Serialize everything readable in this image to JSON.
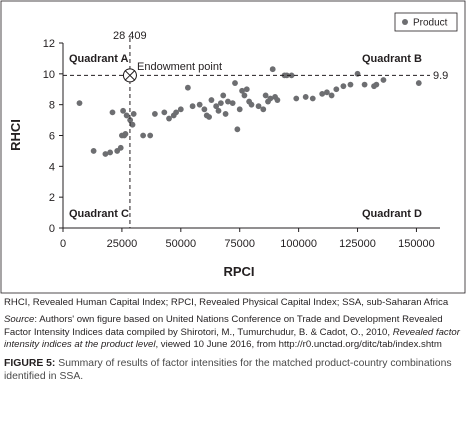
{
  "chart_data": {
    "type": "scatter",
    "xlabel": "RPCI",
    "ylabel": "RHCI",
    "xlim": [
      0,
      160000
    ],
    "ylim": [
      0,
      12
    ],
    "xticks": [
      "0",
      "25000",
      "50000",
      "75000",
      "100000",
      "125000",
      "150000"
    ],
    "xtick_values": [
      0,
      25000,
      50000,
      75000,
      100000,
      125000,
      150000
    ],
    "yticks": [
      "0",
      "2",
      "4",
      "6",
      "8",
      "10",
      "12"
    ],
    "ytick_values": [
      0,
      2,
      4,
      6,
      8,
      10,
      12
    ],
    "grid": false,
    "legend_position": "top-right",
    "legend": [
      "Product"
    ],
    "point_color": "#6d6e71",
    "series": [
      {
        "name": "Product",
        "points": [
          [
            7000,
            8.1
          ],
          [
            13000,
            5.0
          ],
          [
            18000,
            4.8
          ],
          [
            20000,
            4.9
          ],
          [
            21000,
            7.5
          ],
          [
            23000,
            5.0
          ],
          [
            24500,
            5.2
          ],
          [
            25000,
            6.0
          ],
          [
            25500,
            7.6
          ],
          [
            26000,
            6.0
          ],
          [
            26500,
            6.1
          ],
          [
            27000,
            7.3
          ],
          [
            28500,
            7.0
          ],
          [
            29500,
            6.7
          ],
          [
            30000,
            7.4
          ],
          [
            34000,
            6.0
          ],
          [
            37000,
            6.0
          ],
          [
            39000,
            7.4
          ],
          [
            43000,
            7.5
          ],
          [
            45000,
            7.1
          ],
          [
            47000,
            7.3
          ],
          [
            48000,
            7.5
          ],
          [
            50000,
            7.7
          ],
          [
            53000,
            9.1
          ],
          [
            55000,
            7.9
          ],
          [
            58000,
            8.0
          ],
          [
            60000,
            7.7
          ],
          [
            61000,
            7.3
          ],
          [
            62000,
            7.2
          ],
          [
            63000,
            8.3
          ],
          [
            65000,
            7.9
          ],
          [
            66000,
            7.6
          ],
          [
            67000,
            8.1
          ],
          [
            68000,
            8.6
          ],
          [
            69000,
            7.4
          ],
          [
            70000,
            8.2
          ],
          [
            72000,
            8.1
          ],
          [
            73000,
            9.4
          ],
          [
            74000,
            6.4
          ],
          [
            75000,
            7.7
          ],
          [
            76000,
            8.9
          ],
          [
            77000,
            8.6
          ],
          [
            78000,
            9.0
          ],
          [
            79000,
            8.2
          ],
          [
            80000,
            8.0
          ],
          [
            83000,
            7.9
          ],
          [
            85000,
            7.7
          ],
          [
            86000,
            8.6
          ],
          [
            87000,
            8.2
          ],
          [
            88000,
            8.4
          ],
          [
            89000,
            10.3
          ],
          [
            90000,
            8.5
          ],
          [
            91000,
            8.3
          ],
          [
            94000,
            9.9
          ],
          [
            95000,
            9.9
          ],
          [
            97000,
            9.9
          ],
          [
            99000,
            8.4
          ],
          [
            103000,
            8.5
          ],
          [
            106000,
            8.4
          ],
          [
            110000,
            8.7
          ],
          [
            112000,
            8.8
          ],
          [
            114000,
            8.6
          ],
          [
            116000,
            9.0
          ],
          [
            119000,
            9.2
          ],
          [
            122000,
            9.3
          ],
          [
            125000,
            10.0
          ],
          [
            128000,
            9.3
          ],
          [
            132000,
            9.2
          ],
          [
            133000,
            9.3
          ],
          [
            136000,
            9.6
          ],
          [
            151000,
            9.4
          ]
        ]
      }
    ],
    "endowment": {
      "x": 28409,
      "y": 9.9
    },
    "annotations": {
      "endowment_x_label": "28 409",
      "endowment_y_label": "9.9",
      "endowment_point_label": "Endowment point",
      "quadrant_a": "Quadrant A",
      "quadrant_b": "Quadrant B",
      "quadrant_c": "Quadrant C",
      "quadrant_d": "Quadrant D"
    }
  },
  "caption": {
    "abbreviations": "RHCI, Revealed Human Capital Index; RPCI, Revealed Physical Capital Index; SSA, sub-Saharan Africa",
    "source_label": "Source",
    "source_text_1": ": Authors' own figure based on United Nations Conference on Trade and Development Revealed Factor Intensity Indices data compiled by Shirotori, M., Tumurchudur, B. & Cadot, O., 2010, ",
    "source_title": "Revealed factor intensity indices at the product level",
    "source_text_2": ", viewed 10 June 2016, from http://r0.unctad.org/ditc/tab/index.shtm",
    "figure_label": "FIGURE 5:",
    "figure_text": " Summary of results of factor intensities for the matched product-country combinations identified in SSA."
  }
}
